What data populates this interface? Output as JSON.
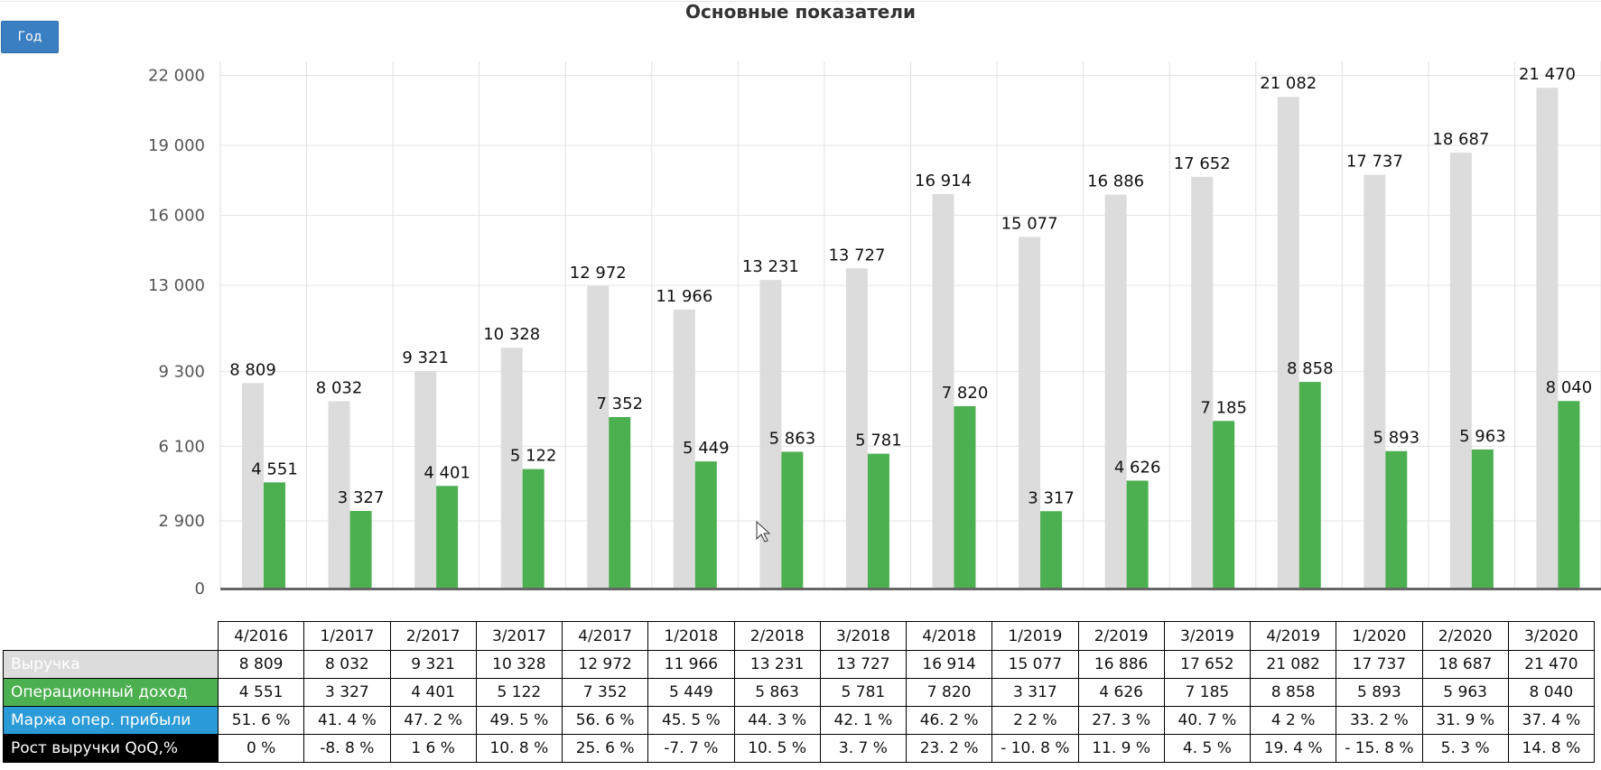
{
  "title": "Основные показатели",
  "period_button": "Год",
  "chart_data": {
    "type": "bar",
    "title": "Основные показатели",
    "categories": [
      "4/2016",
      "1/2017",
      "2/2017",
      "3/2017",
      "4/2017",
      "1/2018",
      "2/2018",
      "3/2018",
      "4/2018",
      "1/2019",
      "2/2019",
      "3/2019",
      "4/2019",
      "1/2020",
      "2/2020",
      "3/2020"
    ],
    "ylim": [
      0,
      22600
    ],
    "yticks": [
      0,
      2900,
      6100,
      9300,
      13000,
      16000,
      19000,
      22000
    ],
    "ytick_labels": [
      "0",
      "2 900",
      "6 100",
      "9 300",
      "13 000",
      "16 000",
      "19 000",
      "22 000"
    ],
    "grid": true,
    "series": [
      {
        "name": "Выручка",
        "color": "#dcdcdc",
        "values": [
          8809,
          8032,
          9321,
          10328,
          12972,
          11966,
          13231,
          13727,
          16914,
          15077,
          16886,
          17652,
          21082,
          17737,
          18687,
          21470
        ],
        "labels": [
          "8 809",
          "8 032",
          "9 321",
          "10 328",
          "12 972",
          "11 966",
          "13 231",
          "13 727",
          "16 914",
          "15 077",
          "16 886",
          "17 652",
          "21 082",
          "17 737",
          "18 687",
          "21 470"
        ]
      },
      {
        "name": "Операционный доход",
        "color": "#4caf50",
        "values": [
          4551,
          3327,
          4401,
          5122,
          7352,
          5449,
          5863,
          5781,
          7820,
          3317,
          4626,
          7185,
          8858,
          5893,
          5963,
          8040
        ],
        "labels": [
          "4 551",
          "3 327",
          "4 401",
          "5 122",
          "7 352",
          "5 449",
          "5 863",
          "5 781",
          "7 820",
          "3 317",
          "4 626",
          "7 185",
          "8 858",
          "5 893",
          "5 963",
          "8 040"
        ]
      }
    ]
  },
  "table": {
    "rows": [
      {
        "label": "Выручка",
        "bg": "#dcdcdc",
        "fg": "#ffffff",
        "values": [
          "8 809",
          "8 032",
          "9 321",
          "10 328",
          "12 972",
          "11 966",
          "13 231",
          "13 727",
          "16 914",
          "15 077",
          "16 886",
          "17 652",
          "21 082",
          "17 737",
          "18 687",
          "21 470"
        ]
      },
      {
        "label": "Операционный доход",
        "bg": "#4caf50",
        "fg": "#ffffff",
        "values": [
          "4 551",
          "3 327",
          "4 401",
          "5 122",
          "7 352",
          "5 449",
          "5 863",
          "5 781",
          "7 820",
          "3 317",
          "4 626",
          "7 185",
          "8 858",
          "5 893",
          "5 963",
          "8 040"
        ]
      },
      {
        "label": "Маржа опер. прибыли",
        "bg": "#2b9bd8",
        "fg": "#ffffff",
        "values": [
          "51. 6 %",
          "41. 4 %",
          "47. 2 %",
          "49. 5 %",
          "56. 6 %",
          "45. 5 %",
          "44. 3 %",
          "42. 1 %",
          "46. 2 %",
          "2 2 %",
          "27. 3 %",
          "40. 7 %",
          "4 2 %",
          "33. 2 %",
          "31. 9 %",
          "37. 4 %"
        ]
      },
      {
        "label": "Рост выручки QoQ,%",
        "bg": "#000000",
        "fg": "#ffffff",
        "values": [
          "0 %",
          "-8. 8 %",
          "1 6 %",
          "10. 8 %",
          "25. 6 %",
          "-7. 7 %",
          "10. 5 %",
          "3. 7 %",
          "23. 2 %",
          "- 10. 8 %",
          "11. 9 %",
          "4. 5 %",
          "19. 4 %",
          "- 15. 8 %",
          "5. 3 %",
          "14. 8 %"
        ]
      }
    ]
  }
}
